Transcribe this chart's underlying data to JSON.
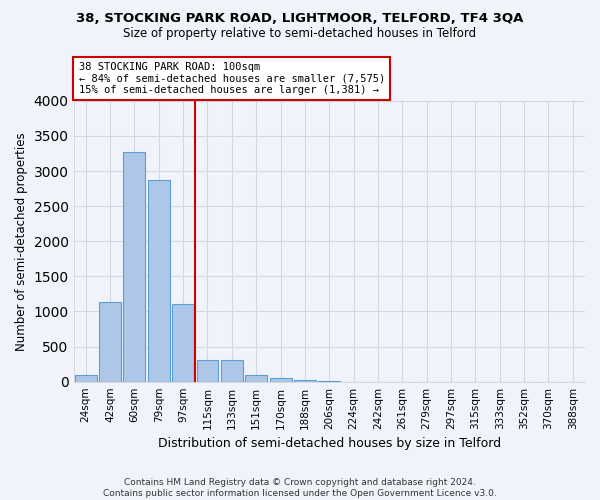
{
  "title1": "38, STOCKING PARK ROAD, LIGHTMOOR, TELFORD, TF4 3QA",
  "title2": "Size of property relative to semi-detached houses in Telford",
  "xlabel": "Distribution of semi-detached houses by size in Telford",
  "ylabel": "Number of semi-detached properties",
  "footnote": "Contains HM Land Registry data © Crown copyright and database right 2024.\nContains public sector information licensed under the Open Government Licence v3.0.",
  "categories": [
    "24sqm",
    "42sqm",
    "60sqm",
    "79sqm",
    "97sqm",
    "115sqm",
    "133sqm",
    "151sqm",
    "170sqm",
    "188sqm",
    "206sqm",
    "224sqm",
    "242sqm",
    "261sqm",
    "279sqm",
    "297sqm",
    "315sqm",
    "333sqm",
    "352sqm",
    "370sqm",
    "388sqm"
  ],
  "values": [
    90,
    1130,
    3270,
    2870,
    1100,
    305,
    305,
    95,
    55,
    30,
    5,
    0,
    0,
    0,
    0,
    0,
    0,
    0,
    0,
    0,
    0
  ],
  "bar_color": "#aec6e8",
  "bar_edge_color": "#5a9fd4",
  "grid_color": "#d0d8e8",
  "annotation_line1": "38 STOCKING PARK ROAD: 100sqm",
  "annotation_line2": "← 84% of semi-detached houses are smaller (7,575)",
  "annotation_line3": "15% of semi-detached houses are larger (1,381) →",
  "vline_x_index": 4.5,
  "annotation_box_color": "#ffffff",
  "annotation_box_edge": "#cc0000",
  "vline_color": "#cc0000",
  "ylim": [
    0,
    4000
  ],
  "yticks": [
    0,
    500,
    1000,
    1500,
    2000,
    2500,
    3000,
    3500,
    4000
  ],
  "background_color": "#f0f4fa",
  "title1_fontsize": 9.5,
  "title2_fontsize": 8.5,
  "ylabel_fontsize": 8.5,
  "xlabel_fontsize": 9,
  "tick_fontsize": 7.5,
  "annotation_fontsize": 7.5,
  "footnote_fontsize": 6.5
}
